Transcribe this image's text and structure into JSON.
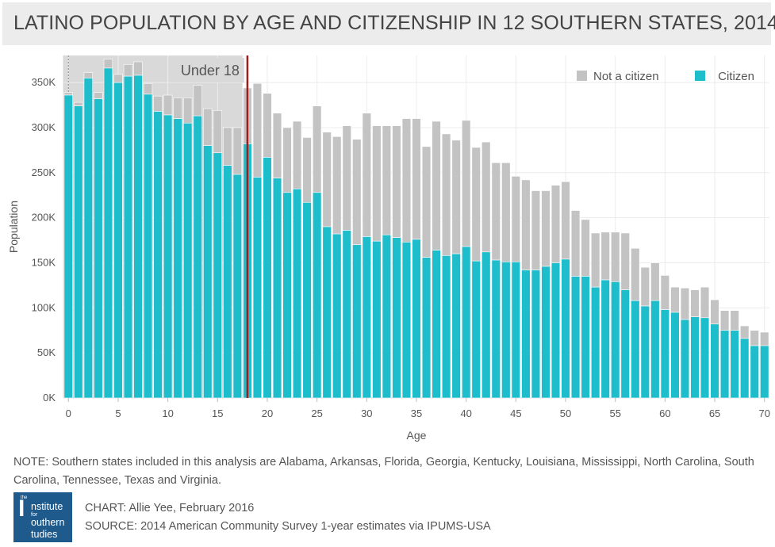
{
  "title": "LATINO POPULATION BY AGE AND CITIZENSHIP IN 12 SOUTHERN STATES, 2014",
  "note": "NOTE: Southern states included in this analysis are Alabama, Arkansas, Florida, Georgia, Kentucky, Louisiana, Mississippi, North Carolina, South Carolina, Tennessee, Texas and Virginia.",
  "credit": {
    "chart": "CHART: Allie Yee, February 2016",
    "source": "SOURCE: 2014 American Community Survey 1-year estimates via IPUMS-USA"
  },
  "logo": {
    "the": "the",
    "big": "I",
    "word1": "nstitute",
    "word2": "for",
    "word3": "outhern",
    "word4": "tudies"
  },
  "chart_data": {
    "type": "bar",
    "stacked": true,
    "xlabel": "Age",
    "ylabel": "Population",
    "ylim": [
      0,
      380000
    ],
    "y_ticks": [
      0,
      50000,
      100000,
      150000,
      200000,
      250000,
      300000,
      350000
    ],
    "y_tick_labels": [
      "0K",
      "50K",
      "100K",
      "150K",
      "200K",
      "250K",
      "300K",
      "350K"
    ],
    "x_ticks": [
      0,
      5,
      10,
      15,
      20,
      25,
      30,
      35,
      40,
      45,
      50,
      55,
      60,
      65,
      70
    ],
    "x_tick_labels": [
      "0",
      "5",
      "10",
      "15",
      "20",
      "25",
      "30",
      "35",
      "40",
      "45",
      "50",
      "55",
      "60",
      "65",
      "70"
    ],
    "grid": true,
    "legend_position": "top-right",
    "legend": [
      {
        "label": "Not a citizen",
        "color": "#c3c3c3"
      },
      {
        "label": "Citizen",
        "color": "#1ebdcb"
      }
    ],
    "annotation": {
      "label": "Under 18",
      "x_start": 0,
      "x_end": 18,
      "line_x": 18,
      "shade_color": "#d9d9d9",
      "line_color": "#a31b1b"
    },
    "categories": [
      0,
      1,
      2,
      3,
      4,
      5,
      6,
      7,
      8,
      9,
      10,
      11,
      12,
      13,
      14,
      15,
      16,
      17,
      18,
      19,
      20,
      21,
      22,
      23,
      24,
      25,
      26,
      27,
      28,
      29,
      30,
      31,
      32,
      33,
      34,
      35,
      36,
      37,
      38,
      39,
      40,
      41,
      42,
      43,
      44,
      45,
      46,
      47,
      48,
      49,
      50,
      51,
      52,
      53,
      54,
      55,
      56,
      57,
      58,
      59,
      60,
      61,
      62,
      63,
      64,
      65,
      66,
      67,
      68,
      69,
      70
    ],
    "series": [
      {
        "name": "Citizen",
        "color": "#1ebdcb",
        "values": [
          336000,
          324000,
          355000,
          332000,
          366000,
          350000,
          357000,
          358000,
          337000,
          318000,
          314000,
          310000,
          305000,
          313000,
          280000,
          272000,
          258000,
          248000,
          282000,
          245000,
          267000,
          244000,
          228000,
          232000,
          217000,
          228000,
          190000,
          182000,
          186000,
          170000,
          179000,
          174000,
          181000,
          178000,
          173000,
          176000,
          156000,
          164000,
          158000,
          160000,
          168000,
          152000,
          162000,
          153000,
          151000,
          151000,
          142000,
          142000,
          146000,
          150000,
          154000,
          135000,
          135000,
          123000,
          131000,
          129000,
          120000,
          108000,
          102000,
          108000,
          98000,
          95000,
          87000,
          90000,
          89000,
          82000,
          75000,
          75000,
          66000,
          58000,
          58000
        ]
      },
      {
        "name": "Not a citizen",
        "color": "#c3c3c3",
        "values": [
          3000,
          4000,
          6000,
          7000,
          10000,
          9000,
          13000,
          15000,
          12000,
          17000,
          22000,
          23000,
          28000,
          34000,
          41000,
          47000,
          42000,
          52000,
          62000,
          104000,
          71000,
          72000,
          72000,
          75000,
          72000,
          96000,
          105000,
          108000,
          116000,
          117000,
          137000,
          128000,
          121000,
          124000,
          137000,
          134000,
          123000,
          143000,
          135000,
          126000,
          140000,
          126000,
          122000,
          108000,
          110000,
          95000,
          100000,
          88000,
          84000,
          86000,
          86000,
          73000,
          63000,
          60000,
          53000,
          55000,
          63000,
          58000,
          43000,
          42000,
          38000,
          28000,
          35000,
          30000,
          34000,
          27000,
          22000,
          22000,
          14000,
          17000,
          15000
        ]
      }
    ]
  }
}
